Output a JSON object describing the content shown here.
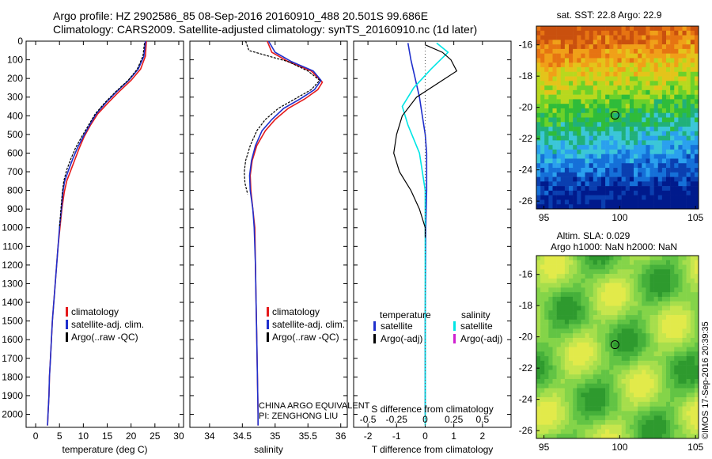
{
  "header": {
    "line1": "Argo profile: HZ 2902586_85 08-Sep-2016 20160910_488 20.501S 99.686E",
    "line2": "Climatology: CARS2009. Satellite-adjusted climatology: synTS_20160910.nc (1d later)"
  },
  "side_stamp": "©IMOS 17-Sep-2016 20:39:35",
  "colors": {
    "climatology": "#e41a1c",
    "satellite": "#1f2fcc",
    "argo": "#000000",
    "cyan": "#00e5e5",
    "magenta": "#d020d0"
  },
  "chart_data": [
    {
      "type": "line",
      "name": "temperature-profile",
      "xlabel": "temperature (deg C)",
      "ylabel": "",
      "xlim": [
        -2,
        31
      ],
      "ylim": [
        2070,
        0
      ],
      "xticks": [
        0,
        5,
        10,
        15,
        20,
        25,
        30
      ],
      "yticks": [
        0,
        100,
        200,
        300,
        400,
        500,
        600,
        700,
        800,
        900,
        1000,
        1100,
        1200,
        1300,
        1400,
        1500,
        1600,
        1700,
        1800,
        1900,
        2000
      ],
      "legend": [
        "climatology",
        "satellite-adj. clim.",
        "Argo(..raw -QC)"
      ],
      "legend_position": "bottom-center",
      "series": [
        {
          "name": "climatology",
          "color": "#e41a1c",
          "points": [
            [
              23.2,
              0
            ],
            [
              23,
              80
            ],
            [
              22,
              150
            ],
            [
              20,
              210
            ],
            [
              17.5,
              270
            ],
            [
              15.2,
              330
            ],
            [
              13,
              390
            ],
            [
              11.5,
              450
            ],
            [
              10.2,
              510
            ],
            [
              9.2,
              570
            ],
            [
              8.3,
              630
            ],
            [
              7.4,
              690
            ],
            [
              6.5,
              750
            ],
            [
              6,
              810
            ],
            [
              5.5,
              900
            ],
            [
              5.1,
              1000
            ],
            [
              4.7,
              1100
            ],
            [
              4.4,
              1200
            ],
            [
              4.1,
              1300
            ],
            [
              3.8,
              1400
            ],
            [
              3.5,
              1500
            ],
            [
              3.3,
              1600
            ],
            [
              3.1,
              1700
            ],
            [
              2.9,
              1800
            ],
            [
              2.8,
              1900
            ],
            [
              2.6,
              2000
            ],
            [
              2.5,
              2060
            ]
          ]
        },
        {
          "name": "satellite-adj. clim.",
          "color": "#1f2fcc",
          "points": [
            [
              23,
              0
            ],
            [
              22.7,
              80
            ],
            [
              21.5,
              150
            ],
            [
              19.5,
              210
            ],
            [
              17,
              270
            ],
            [
              14.7,
              330
            ],
            [
              12.7,
              390
            ],
            [
              11.3,
              450
            ],
            [
              10,
              510
            ],
            [
              8.8,
              570
            ],
            [
              7.8,
              630
            ],
            [
              6.9,
              690
            ],
            [
              6.1,
              750
            ],
            [
              5.7,
              810
            ],
            [
              5.4,
              900
            ],
            [
              5.0,
              1000
            ],
            [
              4.7,
              1100
            ],
            [
              4.4,
              1200
            ],
            [
              4.1,
              1300
            ],
            [
              3.8,
              1400
            ],
            [
              3.5,
              1500
            ],
            [
              3.3,
              1600
            ],
            [
              3.1,
              1700
            ],
            [
              2.9,
              1800
            ],
            [
              2.8,
              1900
            ],
            [
              2.6,
              2000
            ],
            [
              2.5,
              2060
            ]
          ]
        },
        {
          "name": "Argo(..raw -QC)",
          "color": "#000000",
          "points": [
            [
              22.8,
              10
            ],
            [
              22.5,
              80
            ],
            [
              21.3,
              150
            ],
            [
              19.4,
              210
            ],
            [
              16.8,
              270
            ],
            [
              14.5,
              330
            ],
            [
              12.5,
              390
            ],
            [
              11.1,
              450
            ],
            [
              9.7,
              510
            ],
            [
              8.4,
              570
            ],
            [
              7.4,
              630
            ],
            [
              6.5,
              690
            ],
            [
              5.9,
              750
            ],
            [
              5.6,
              810
            ],
            [
              5.3,
              900
            ],
            [
              5.0,
              1000
            ]
          ]
        }
      ]
    },
    {
      "type": "line",
      "name": "salinity-profile",
      "xlabel": "salinity",
      "ylabel": "",
      "xlim": [
        33.7,
        36.1
      ],
      "ylim": [
        2070,
        0
      ],
      "xticks": [
        34,
        34.5,
        35,
        35.5,
        36
      ],
      "legend": [
        "climatology",
        "satellite-adj. clim.",
        "Argo(..raw -QC)"
      ],
      "legend_position": "bottom-center",
      "annotation": [
        "CHINA ARGO EQUIVALENT",
        "PI: ZENGHONG LIU"
      ],
      "series": [
        {
          "name": "climatology",
          "color": "#e41a1c",
          "points": [
            [
              34.88,
              0
            ],
            [
              34.95,
              60
            ],
            [
              35.2,
              110
            ],
            [
              35.55,
              160
            ],
            [
              35.72,
              220
            ],
            [
              35.65,
              260
            ],
            [
              35.45,
              310
            ],
            [
              35.2,
              360
            ],
            [
              35,
              420
            ],
            [
              34.85,
              480
            ],
            [
              34.72,
              560
            ],
            [
              34.65,
              640
            ],
            [
              34.62,
              720
            ],
            [
              34.63,
              800
            ],
            [
              34.66,
              900
            ],
            [
              34.69,
              1000
            ],
            [
              34.7,
              1200
            ],
            [
              34.71,
              1400
            ],
            [
              34.72,
              1600
            ],
            [
              34.73,
              1800
            ],
            [
              34.74,
              2000
            ],
            [
              34.74,
              2060
            ]
          ]
        },
        {
          "name": "satellite-adj. clim.",
          "color": "#1f2fcc",
          "points": [
            [
              34.9,
              0
            ],
            [
              35.0,
              60
            ],
            [
              35.25,
              110
            ],
            [
              35.58,
              160
            ],
            [
              35.7,
              210
            ],
            [
              35.6,
              260
            ],
            [
              35.38,
              310
            ],
            [
              35.13,
              360
            ],
            [
              34.95,
              420
            ],
            [
              34.8,
              480
            ],
            [
              34.7,
              560
            ],
            [
              34.64,
              640
            ],
            [
              34.61,
              720
            ],
            [
              34.62,
              800
            ],
            [
              34.66,
              900
            ],
            [
              34.68,
              1000
            ],
            [
              34.7,
              1200
            ],
            [
              34.71,
              1400
            ],
            [
              34.72,
              1600
            ],
            [
              34.73,
              1800
            ],
            [
              34.74,
              2000
            ],
            [
              34.74,
              2060
            ]
          ]
        },
        {
          "name": "Argo(..raw -QC)",
          "color": "#000000",
          "points": [
            [
              34.55,
              0
            ],
            [
              34.6,
              50
            ],
            [
              34.9,
              80
            ],
            [
              35.2,
              110
            ],
            [
              35.5,
              160
            ],
            [
              35.68,
              210
            ],
            [
              35.55,
              260
            ],
            [
              35.3,
              310
            ],
            [
              35.05,
              360
            ],
            [
              34.85,
              420
            ],
            [
              34.72,
              480
            ],
            [
              34.62,
              560
            ],
            [
              34.55,
              640
            ],
            [
              34.53,
              700
            ],
            [
              34.54,
              760
            ],
            [
              34.58,
              820
            ]
          ]
        }
      ]
    },
    {
      "type": "line",
      "name": "difference-profile",
      "xlabel": "T difference from climatology",
      "xlabel2": "S difference from climatology",
      "xlim": [
        -2.5,
        3
      ],
      "ylim": [
        2070,
        0
      ],
      "xticks": [
        -2,
        -1,
        0,
        1,
        2
      ],
      "xticks2": [
        -0.5,
        -0.25,
        0,
        0.25,
        0.5
      ],
      "legend": {
        "temperature_header": "temperature",
        "salinity_header": "salinity",
        "items_temperature": [
          "satellite",
          "Argo(-adj)"
        ],
        "items_salinity": [
          "satellite",
          "Argo(-adj)"
        ]
      },
      "legend_position": "bottom-center",
      "series": [
        {
          "name": "T satellite",
          "color": "#1f2fcc",
          "points": [
            [
              -0.6,
              10
            ],
            [
              -0.5,
              100
            ],
            [
              -0.35,
              200
            ],
            [
              -0.2,
              300
            ],
            [
              -0.1,
              400
            ],
            [
              0,
              500
            ],
            [
              0.05,
              600
            ],
            [
              0.05,
              800
            ],
            [
              0.02,
              1000
            ],
            [
              0,
              1500
            ],
            [
              0,
              2000
            ]
          ]
        },
        {
          "name": "S satellite",
          "color": "#00e5e5",
          "points": [
            [
              0.1,
              10
            ],
            [
              0.2,
              60
            ],
            [
              0.05,
              150
            ],
            [
              -0.1,
              250
            ],
            [
              -0.2,
              350
            ],
            [
              -0.15,
              450
            ],
            [
              -0.05,
              600
            ],
            [
              0,
              800
            ],
            [
              0,
              1200
            ],
            [
              0,
              1600
            ],
            [
              0,
              2060
            ]
          ]
        },
        {
          "name": "T Argo(-adj)",
          "color": "#000000",
          "points": [
            [
              0,
              20
            ],
            [
              0.6,
              60
            ],
            [
              0.9,
              100
            ],
            [
              1.1,
              160
            ],
            [
              0.6,
              210
            ],
            [
              -0.3,
              300
            ],
            [
              -0.8,
              400
            ],
            [
              -1.0,
              500
            ],
            [
              -1.1,
              600
            ],
            [
              -0.9,
              700
            ],
            [
              -0.5,
              800
            ],
            [
              -0.2,
              900
            ],
            [
              0,
              1000
            ],
            [
              0,
              1050
            ]
          ]
        }
      ]
    },
    {
      "type": "heatmap",
      "name": "sst-map",
      "title": "sat. SST: 22.8  Argo: 22.9",
      "xlim": [
        94.5,
        105.2
      ],
      "ylim": [
        -26.5,
        -14.8
      ],
      "xticks": [
        95,
        100,
        105
      ],
      "yticks": [
        -16,
        -18,
        -20,
        -22,
        -24,
        -26
      ],
      "marker": {
        "lon": 99.686,
        "lat": -20.501
      }
    },
    {
      "type": "heatmap",
      "name": "sla-map",
      "title": "Altim. SLA: 0.029",
      "subtitle": "Argo h1000: NaN  h2000: NaN",
      "xlim": [
        94.5,
        105.2
      ],
      "ylim": [
        -26.5,
        -14.8
      ],
      "xticks": [
        95,
        100,
        105
      ],
      "yticks": [
        -16,
        -18,
        -20,
        -22,
        -24,
        -26
      ],
      "marker": {
        "lon": 99.686,
        "lat": -20.501
      }
    }
  ]
}
